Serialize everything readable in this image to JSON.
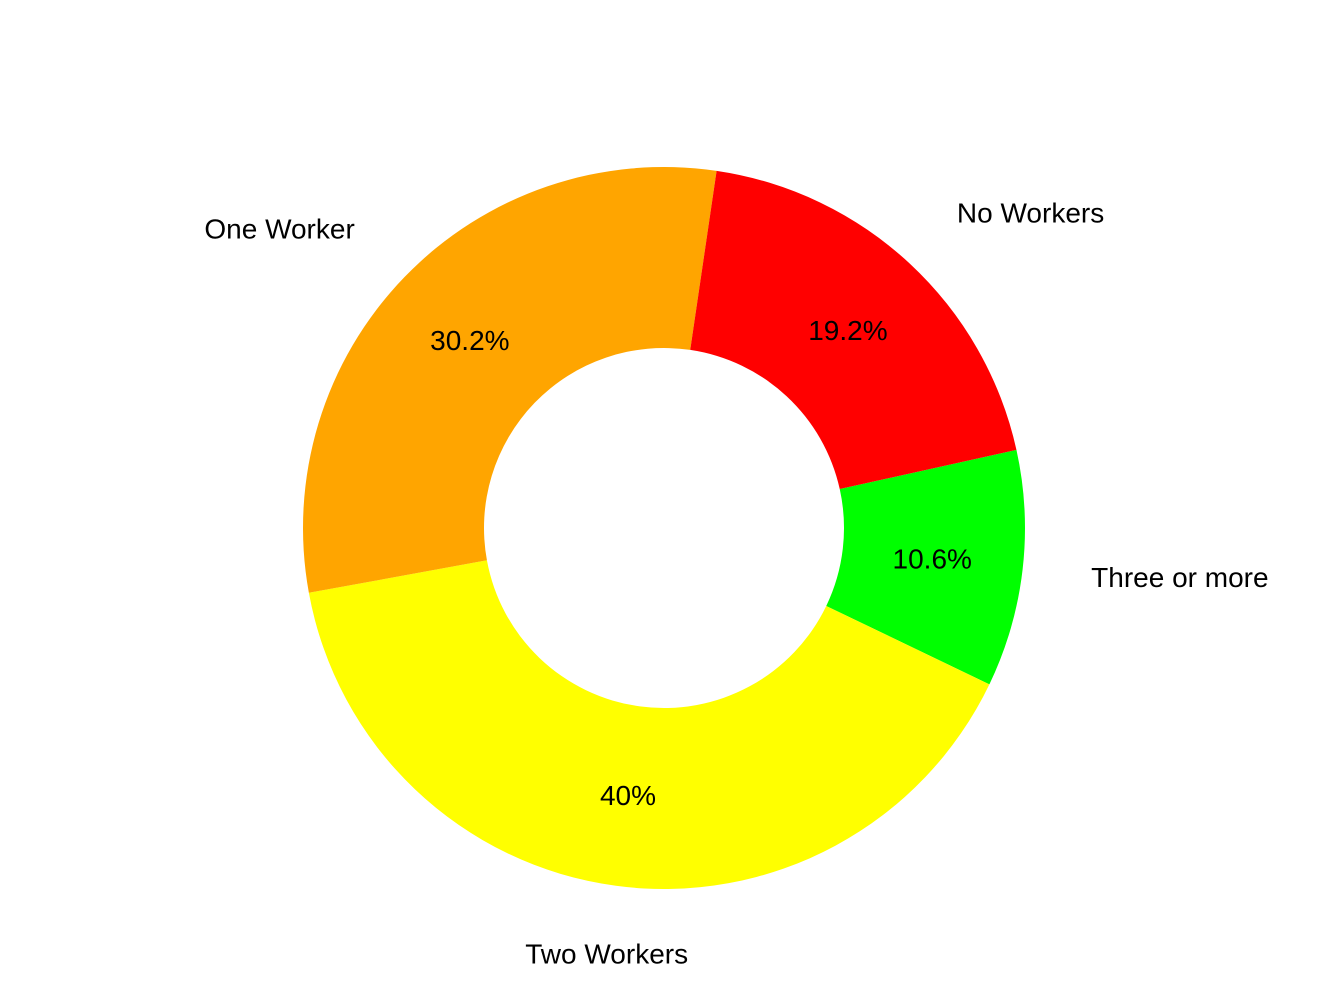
{
  "chart_data": {
    "type": "pie",
    "variant": "donut",
    "slices": [
      {
        "label": "Three or more",
        "value": 10.6,
        "display": "10.6%",
        "color": "#00ff00"
      },
      {
        "label": "Two Workers",
        "value": 40.0,
        "display": "40%",
        "color": "#ffff00"
      },
      {
        "label": "One Worker",
        "value": 30.2,
        "display": "30.2%",
        "color": "#ffa500"
      },
      {
        "label": "No Workers",
        "value": 19.2,
        "display": "19.2%",
        "color": "#ff0000"
      }
    ],
    "title": "",
    "legend": "none"
  }
}
